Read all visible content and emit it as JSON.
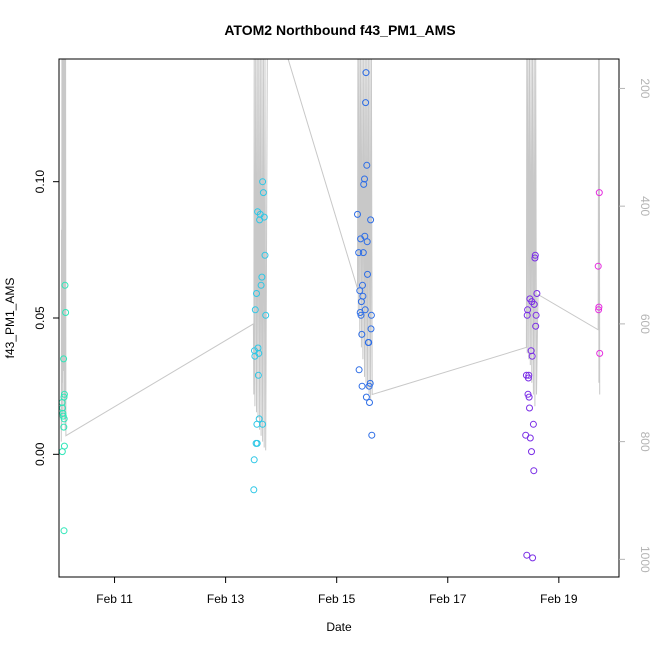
{
  "chart_data": {
    "type": "scatter",
    "title": "ATOM2 Northbound f43_PM1_AMS",
    "xlabel": "Date",
    "ylabel": "f43_PM1_AMS",
    "xlim": [
      "2016-02-10 00:00",
      "2016-02-20 02:00"
    ],
    "ylim": [
      -0.045,
      0.145
    ],
    "y2lim": [
      1030,
      150
    ],
    "x_ticks": [
      {
        "label": "Feb 11",
        "value": "2016-02-11 00:00"
      },
      {
        "label": "Feb 13",
        "value": "2016-02-13 00:00"
      },
      {
        "label": "Feb 15",
        "value": "2016-02-15 00:00"
      },
      {
        "label": "Feb 17",
        "value": "2016-02-17 00:00"
      },
      {
        "label": "Feb 19",
        "value": "2016-02-19 00:00"
      }
    ],
    "y_ticks": [
      {
        "label": "0.00",
        "value": 0
      },
      {
        "label": "0.05",
        "value": 0.05
      },
      {
        "label": "0.10",
        "value": 0.1
      }
    ],
    "y2_ticks": [
      {
        "label": "200",
        "value": 200
      },
      {
        "label": "400",
        "value": 400
      },
      {
        "label": "600",
        "value": 600
      },
      {
        "label": "800",
        "value": 800
      },
      {
        "label": "1000",
        "value": 1000
      }
    ],
    "grid": false,
    "legend": "none",
    "point_series": [
      {
        "color": "#2ee6b8",
        "points": [
          [
            "2016-02-10 01:20",
            0.019
          ],
          [
            "2016-02-10 01:30",
            0.017
          ],
          [
            "2016-02-10 01:40",
            0.015
          ],
          [
            "2016-02-10 01:50",
            0.014
          ],
          [
            "2016-02-10 02:00",
            0.035
          ],
          [
            "2016-02-10 02:10",
            0.021
          ],
          [
            "2016-02-10 02:20",
            0.022
          ],
          [
            "2016-02-10 02:35",
            0.062
          ],
          [
            "2016-02-10 02:50",
            0.052
          ],
          [
            "2016-02-10 02:15",
            0.013
          ],
          [
            "2016-02-10 02:05",
            0.01
          ],
          [
            "2016-02-10 02:20",
            0.003
          ],
          [
            "2016-02-10 01:25",
            0.001
          ],
          [
            "2016-02-10 02:10",
            -0.028
          ]
        ]
      },
      {
        "color": "#2ec7e6",
        "points": [
          [
            "2016-02-13 12:20",
            -0.002
          ],
          [
            "2016-02-13 12:10",
            -0.013
          ],
          [
            "2016-02-13 12:30",
            0.038
          ],
          [
            "2016-02-13 12:40",
            0.036
          ],
          [
            "2016-02-13 12:50",
            0.053
          ],
          [
            "2016-02-13 13:10",
            0.004
          ],
          [
            "2016-02-13 13:20",
            0.059
          ],
          [
            "2016-02-13 13:40",
            0.004
          ],
          [
            "2016-02-13 13:50",
            0.089
          ],
          [
            "2016-02-13 14:00",
            0.039
          ],
          [
            "2016-02-13 14:10",
            0.029
          ],
          [
            "2016-02-13 14:20",
            0.037
          ],
          [
            "2016-02-13 14:40",
            0.086
          ],
          [
            "2016-02-13 15:00",
            0.088
          ],
          [
            "2016-02-13 15:20",
            0.062
          ],
          [
            "2016-02-13 15:40",
            0.065
          ],
          [
            "2016-02-13 16:00",
            0.1
          ],
          [
            "2016-02-13 16:20",
            0.096
          ],
          [
            "2016-02-13 16:40",
            0.087
          ],
          [
            "2016-02-13 17:00",
            0.073
          ],
          [
            "2016-02-13 17:20",
            0.051
          ],
          [
            "2016-02-13 14:30",
            0.013
          ],
          [
            "2016-02-13 13:30",
            0.011
          ],
          [
            "2016-02-13 16:00",
            0.011
          ]
        ]
      },
      {
        "color": "#2e6ee6",
        "points": [
          [
            "2016-02-15 09:00",
            0.088
          ],
          [
            "2016-02-15 09:30",
            0.074
          ],
          [
            "2016-02-15 09:40",
            0.031
          ],
          [
            "2016-02-15 10:00",
            0.06
          ],
          [
            "2016-02-15 10:10",
            0.052
          ],
          [
            "2016-02-15 10:20",
            0.079
          ],
          [
            "2016-02-15 10:40",
            0.056
          ],
          [
            "2016-02-15 10:50",
            0.044
          ],
          [
            "2016-02-15 11:00",
            0.025
          ],
          [
            "2016-02-15 11:10",
            0.062
          ],
          [
            "2016-02-15 11:20",
            0.058
          ],
          [
            "2016-02-15 11:30",
            0.074
          ],
          [
            "2016-02-15 11:40",
            0.099
          ],
          [
            "2016-02-15 12:00",
            0.101
          ],
          [
            "2016-02-15 12:10",
            0.08
          ],
          [
            "2016-02-15 12:20",
            0.053
          ],
          [
            "2016-02-15 12:30",
            0.129
          ],
          [
            "2016-02-15 12:40",
            0.14
          ],
          [
            "2016-02-15 13:00",
            0.106
          ],
          [
            "2016-02-15 13:10",
            0.078
          ],
          [
            "2016-02-15 13:20",
            0.066
          ],
          [
            "2016-02-15 13:40",
            0.041
          ],
          [
            "2016-02-15 13:50",
            0.041
          ],
          [
            "2016-02-15 14:00",
            0.025
          ],
          [
            "2016-02-15 14:10",
            0.019
          ],
          [
            "2016-02-15 14:30",
            0.026
          ],
          [
            "2016-02-15 14:40",
            0.086
          ],
          [
            "2016-02-15 14:50",
            0.046
          ],
          [
            "2016-02-15 15:00",
            0.051
          ],
          [
            "2016-02-15 15:10",
            0.007
          ],
          [
            "2016-02-15 12:50",
            0.021
          ],
          [
            "2016-02-15 10:30",
            0.051
          ]
        ]
      },
      {
        "color": "#7a2ee6",
        "points": [
          [
            "2016-02-18 09:40",
            0.007
          ],
          [
            "2016-02-18 10:00",
            0.029
          ],
          [
            "2016-02-18 10:10",
            -0.037
          ],
          [
            "2016-02-18 10:20",
            0.051
          ],
          [
            "2016-02-18 10:30",
            0.053
          ],
          [
            "2016-02-18 10:40",
            0.022
          ],
          [
            "2016-02-18 10:50",
            0.028
          ],
          [
            "2016-02-18 11:00",
            0.029
          ],
          [
            "2016-02-18 11:10",
            0.021
          ],
          [
            "2016-02-18 11:20",
            0.017
          ],
          [
            "2016-02-18 11:30",
            0.057
          ],
          [
            "2016-02-18 11:40",
            0.006
          ],
          [
            "2016-02-18 12:00",
            0.038
          ],
          [
            "2016-02-18 12:10",
            0.001
          ],
          [
            "2016-02-18 12:20",
            0.056
          ],
          [
            "2016-02-18 12:40",
            -0.038
          ],
          [
            "2016-02-18 13:00",
            0.011
          ],
          [
            "2016-02-18 13:10",
            -0.006
          ],
          [
            "2016-02-18 13:20",
            0.055
          ],
          [
            "2016-02-18 13:40",
            0.072
          ],
          [
            "2016-02-18 13:50",
            0.073
          ],
          [
            "2016-02-18 14:00",
            0.047
          ],
          [
            "2016-02-18 14:10",
            0.051
          ],
          [
            "2016-02-18 14:30",
            0.059
          ],
          [
            "2016-02-18 12:30",
            0.036
          ]
        ]
      },
      {
        "color": "#e62ee0",
        "points": [
          [
            "2016-02-19 17:00",
            0.069
          ],
          [
            "2016-02-19 17:10",
            0.053
          ],
          [
            "2016-02-19 17:20",
            0.054
          ],
          [
            "2016-02-19 17:30",
            0.096
          ],
          [
            "2016-02-19 17:40",
            0.037
          ]
        ]
      }
    ],
    "right_axis_line": {
      "color": "#c8c8c8",
      "points": [
        [
          "2016-02-10 01:00",
          800
        ],
        [
          "2016-02-10 01:05",
          440
        ],
        [
          "2016-02-10 01:10",
          780
        ],
        [
          "2016-02-10 01:15",
          120
        ],
        [
          "2016-02-10 01:20",
          700
        ],
        [
          "2016-02-10 01:30",
          120
        ],
        [
          "2016-02-10 01:40",
          760
        ],
        [
          "2016-02-10 01:50",
          120
        ],
        [
          "2016-02-10 02:00",
          680
        ],
        [
          "2016-02-10 02:10",
          120
        ],
        [
          "2016-02-10 02:20",
          760
        ],
        [
          "2016-02-10 02:30",
          120
        ],
        [
          "2016-02-10 02:40",
          780
        ],
        [
          "2016-02-10 02:50",
          120
        ],
        [
          "2016-02-10 03:00",
          790
        ],
        [
          "2016-02-13 12:00",
          600
        ],
        [
          "2016-02-13 12:10",
          720
        ],
        [
          "2016-02-13 12:20",
          120
        ],
        [
          "2016-02-13 12:40",
          740
        ],
        [
          "2016-02-13 13:00",
          120
        ],
        [
          "2016-02-13 13:20",
          750
        ],
        [
          "2016-02-13 13:40",
          120
        ],
        [
          "2016-02-13 14:00",
          760
        ],
        [
          "2016-02-13 14:20",
          120
        ],
        [
          "2016-02-13 14:40",
          780
        ],
        [
          "2016-02-13 15:00",
          120
        ],
        [
          "2016-02-13 15:20",
          790
        ],
        [
          "2016-02-13 15:40",
          120
        ],
        [
          "2016-02-13 16:00",
          800
        ],
        [
          "2016-02-13 16:20",
          120
        ],
        [
          "2016-02-13 16:40",
          810
        ],
        [
          "2016-02-13 17:00",
          120
        ],
        [
          "2016-02-13 17:20",
          815
        ],
        [
          "2016-02-13 18:00",
          120
        ],
        [
          "2016-02-14 03:00",
          120
        ],
        [
          "2016-02-15 09:00",
          540
        ],
        [
          "2016-02-15 09:10",
          120
        ],
        [
          "2016-02-15 09:20",
          580
        ],
        [
          "2016-02-15 09:40",
          120
        ],
        [
          "2016-02-15 10:00",
          620
        ],
        [
          "2016-02-15 10:20",
          120
        ],
        [
          "2016-02-15 10:40",
          640
        ],
        [
          "2016-02-15 11:00",
          120
        ],
        [
          "2016-02-15 11:20",
          660
        ],
        [
          "2016-02-15 11:40",
          120
        ],
        [
          "2016-02-15 12:00",
          690
        ],
        [
          "2016-02-15 12:20",
          120
        ],
        [
          "2016-02-15 12:40",
          700
        ],
        [
          "2016-02-15 13:00",
          120
        ],
        [
          "2016-02-15 13:20",
          710
        ],
        [
          "2016-02-15 13:40",
          120
        ],
        [
          "2016-02-15 14:00",
          720
        ],
        [
          "2016-02-15 14:20",
          120
        ],
        [
          "2016-02-15 14:40",
          730
        ],
        [
          "2016-02-15 15:00",
          120
        ],
        [
          "2016-02-15 15:20",
          720
        ],
        [
          "2016-02-18 10:00",
          640
        ],
        [
          "2016-02-18 10:10",
          120
        ],
        [
          "2016-02-18 10:20",
          650
        ],
        [
          "2016-02-18 10:40",
          120
        ],
        [
          "2016-02-18 11:00",
          660
        ],
        [
          "2016-02-18 11:20",
          120
        ],
        [
          "2016-02-18 11:40",
          670
        ],
        [
          "2016-02-18 12:00",
          120
        ],
        [
          "2016-02-18 12:20",
          700
        ],
        [
          "2016-02-18 12:40",
          120
        ],
        [
          "2016-02-18 13:00",
          720
        ],
        [
          "2016-02-18 13:20",
          120
        ],
        [
          "2016-02-18 13:40",
          740
        ],
        [
          "2016-02-18 14:00",
          120
        ],
        [
          "2016-02-18 14:20",
          720
        ],
        [
          "2016-02-18 15:00",
          550
        ],
        [
          "2016-02-19 17:00",
          610
        ],
        [
          "2016-02-19 17:10",
          120
        ],
        [
          "2016-02-19 17:20",
          700
        ],
        [
          "2016-02-19 17:30",
          120
        ],
        [
          "2016-02-19 17:40",
          720
        ]
      ]
    }
  }
}
